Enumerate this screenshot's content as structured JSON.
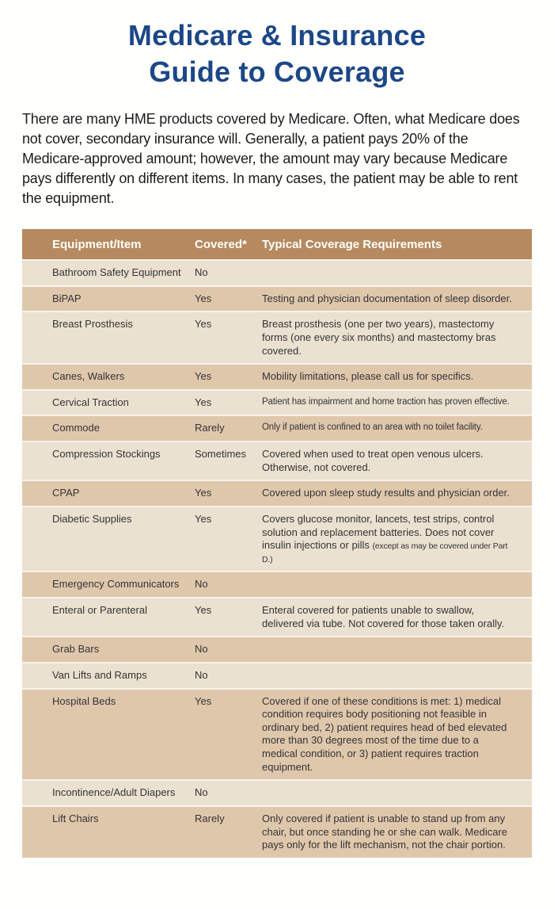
{
  "page": {
    "title_line1": "Medicare & Insurance",
    "title_line2": "Guide to Coverage",
    "intro": "There are many HME products covered by Medicare. Often, what Medicare does not cover, secondary insurance will. Generally, a patient pays 20% of the Medicare-approved amount; however, the amount may vary because Medicare pays differently on different items. In many cases, the patient may be able to rent the equipment."
  },
  "colors": {
    "title_blue": "#1c4788",
    "header_brown": "#b68a5e",
    "row_light": "#ebe1d1",
    "row_dark": "#dfc7ac"
  },
  "table": {
    "headers": [
      "Equipment/Item",
      "Covered*",
      "Typical Coverage Requirements"
    ],
    "rows": [
      {
        "item": "Bathroom Safety Equipment",
        "covered": "No",
        "requirements": ""
      },
      {
        "item": "BiPAP",
        "covered": "Yes",
        "requirements": "Testing and physician documentation of sleep disorder."
      },
      {
        "item": "Breast Prosthesis",
        "covered": "Yes",
        "requirements": "Breast prosthesis (one per two years), mastectomy forms (one every six months) and mastectomy bras covered."
      },
      {
        "item": "Canes, Walkers",
        "covered": "Yes",
        "requirements": "Mobility limitations, please call us for specifics."
      },
      {
        "item": "Cervical Traction",
        "covered": "Yes",
        "requirements": "Patient has impairment and home traction has proven effective.",
        "condensed": true
      },
      {
        "item": "Commode",
        "covered": "Rarely",
        "requirements": "Only if patient is confined to an area with no toilet facility.",
        "condensed": true
      },
      {
        "item": "Compression Stockings",
        "covered": "Sometimes",
        "requirements": "Covered when used to treat open venous ulcers. Otherwise, not covered."
      },
      {
        "item": "CPAP",
        "covered": "Yes",
        "requirements": "Covered upon sleep study results and physician order."
      },
      {
        "item": "Diabetic Supplies",
        "covered": "Yes",
        "requirements": "Covers glucose monitor, lancets, test strips, control solution and replacement batteries. Does not cover insulin injections or pills ",
        "requirements_fine": "(except as may be covered under Part D.)"
      },
      {
        "item": "Emergency Communicators",
        "covered": "No",
        "requirements": ""
      },
      {
        "item": "Enteral or Parenteral",
        "covered": "Yes",
        "requirements": "Enteral covered for patients unable to swallow, delivered via tube. Not covered for those taken orally."
      },
      {
        "item": "Grab Bars",
        "covered": "No",
        "requirements": ""
      },
      {
        "item": "Van Lifts and Ramps",
        "covered": "No",
        "requirements": ""
      },
      {
        "item": "Hospital Beds",
        "covered": "Yes",
        "requirements": "Covered if one of these conditions is met: 1) medical condition requires body positioning not feasible in ordinary bed, 2) patient requires head of bed elevated more than 30 degrees most of the time due to a medical condition, or 3) patient requires traction equipment."
      },
      {
        "item": "Incontinence/Adult Diapers",
        "covered": "No",
        "requirements": ""
      },
      {
        "item": "Lift Chairs",
        "covered": "Rarely",
        "requirements": "Only covered if patient is unable to stand up from any chair, but once standing he or she can walk. Medicare pays only for the lift mechanism, not the chair portion."
      }
    ]
  }
}
